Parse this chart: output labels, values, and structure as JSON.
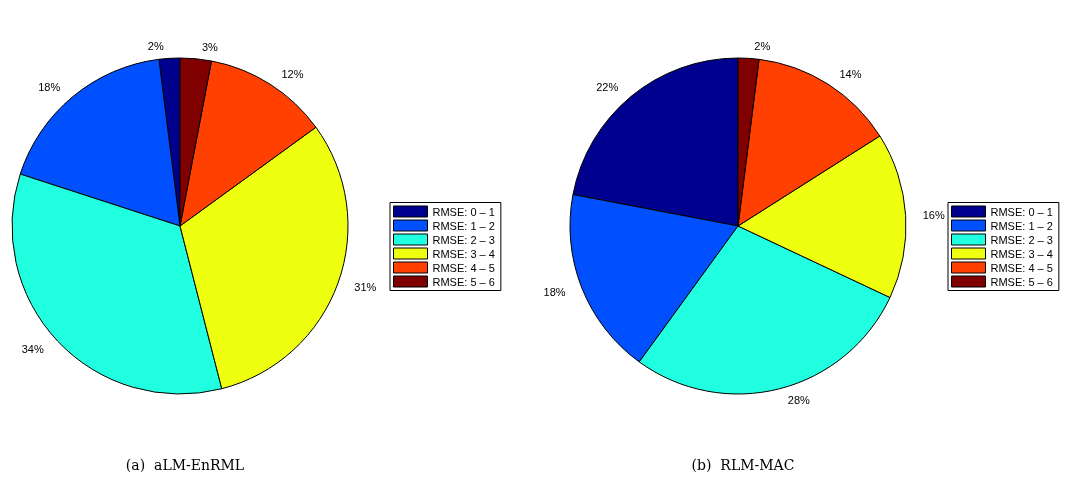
{
  "chart_data": [
    {
      "type": "pie",
      "title": "(a)  aLM-EnRML",
      "categories": [
        "RMSE: 0 – 1",
        "RMSE: 1 – 2",
        "RMSE: 2 – 3",
        "RMSE: 3 – 4",
        "RMSE: 4 – 5",
        "RMSE: 5 – 6"
      ],
      "values": [
        2,
        18,
        34,
        31,
        12,
        3
      ],
      "value_labels": [
        "2%",
        "18%",
        "34%",
        "31%",
        "12%",
        "3%"
      ],
      "colors": [
        "#00008f",
        "#0050ff",
        "#20ffe0",
        "#eeff10",
        "#ff4000",
        "#800000"
      ],
      "legend": "right"
    },
    {
      "type": "pie",
      "title": "(b)  RLM-MAC",
      "categories": [
        "RMSE: 0 – 1",
        "RMSE: 1 – 2",
        "RMSE: 2 – 3",
        "RMSE: 3 – 4",
        "RMSE: 4 – 5",
        "RMSE: 5 – 6"
      ],
      "values": [
        22,
        18,
        28,
        16,
        14,
        2
      ],
      "value_labels": [
        "22%",
        "18%",
        "28%",
        "16%",
        "14%",
        "2%"
      ],
      "colors": [
        "#00008f",
        "#0050ff",
        "#20ffe0",
        "#eeff10",
        "#ff4000",
        "#800000"
      ],
      "legend": "right"
    }
  ]
}
